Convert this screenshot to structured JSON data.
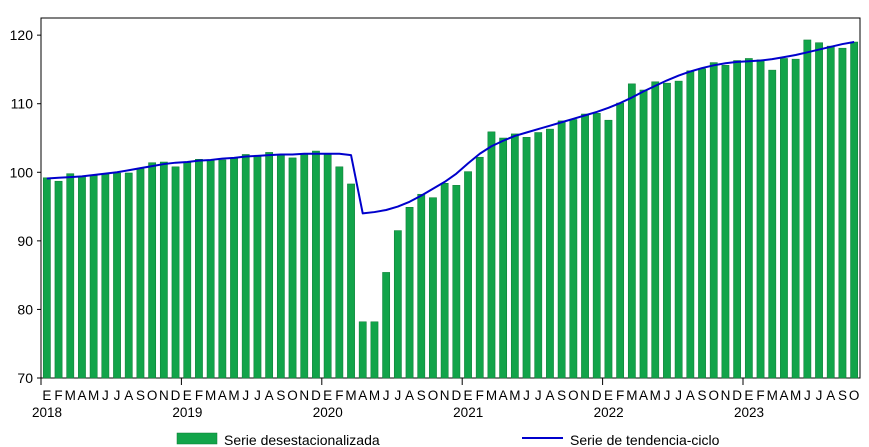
{
  "chart_data": {
    "type": "bar",
    "title": "",
    "xlabel": "",
    "ylabel": "",
    "ylim": [
      70,
      122.5
    ],
    "yticks": [
      70,
      80,
      90,
      100,
      110,
      120
    ],
    "grid": false,
    "legend_position": "bottom",
    "month_labels": [
      "E",
      "F",
      "M",
      "A",
      "M",
      "J",
      "J",
      "A",
      "S",
      "O",
      "N",
      "D"
    ],
    "years": [
      "2018",
      "2019",
      "2020",
      "2021",
      "2022",
      "2023"
    ],
    "colors": {
      "bar": "#12a44a",
      "bar_edge": "#0a7a33",
      "line": "#0000cc"
    },
    "series": [
      {
        "name": "Serie desestacionalizada",
        "type": "bar",
        "values": [
          99.2,
          98.7,
          99.8,
          99.4,
          99.5,
          99.8,
          99.9,
          99.9,
          100.5,
          101.4,
          101.5,
          100.8,
          101.4,
          101.9,
          101.7,
          101.8,
          102.1,
          102.6,
          102.4,
          102.9,
          102.5,
          102.1,
          102.7,
          103.1,
          102.6,
          100.8,
          98.3,
          78.2,
          78.2,
          85.4,
          91.5,
          94.9,
          96.8,
          96.3,
          98.4,
          98.1,
          100.1,
          102.2,
          105.9,
          105.0,
          105.6,
          105.1,
          105.8,
          106.3,
          107.5,
          107.7,
          108.5,
          108.6,
          107.6,
          110.1,
          112.9,
          112.0,
          113.2,
          113.0,
          113.3,
          114.8,
          115.1,
          116.0,
          115.6,
          116.3,
          116.6,
          116.4,
          114.9,
          116.6,
          116.5,
          119.3,
          118.9,
          118.4,
          118.1,
          119.0
        ]
      },
      {
        "name": "Serie de tendencia-ciclo",
        "type": "line",
        "values": [
          99.1,
          99.2,
          99.3,
          99.4,
          99.6,
          99.8,
          100.0,
          100.3,
          100.6,
          100.9,
          101.2,
          101.4,
          101.5,
          101.7,
          101.8,
          102.0,
          102.1,
          102.3,
          102.4,
          102.5,
          102.6,
          102.6,
          102.7,
          102.7,
          102.7,
          102.7,
          102.5,
          94.0,
          94.2,
          94.5,
          95.0,
          95.7,
          96.6,
          97.6,
          98.6,
          99.8,
          101.3,
          102.7,
          103.8,
          104.6,
          105.3,
          105.8,
          106.3,
          106.8,
          107.3,
          107.8,
          108.3,
          108.8,
          109.4,
          110.1,
          110.9,
          111.8,
          112.6,
          113.4,
          114.1,
          114.7,
          115.2,
          115.6,
          115.9,
          116.1,
          116.2,
          116.3,
          116.5,
          116.8,
          117.1,
          117.5,
          117.9,
          118.3,
          118.7,
          119.0
        ]
      }
    ]
  }
}
